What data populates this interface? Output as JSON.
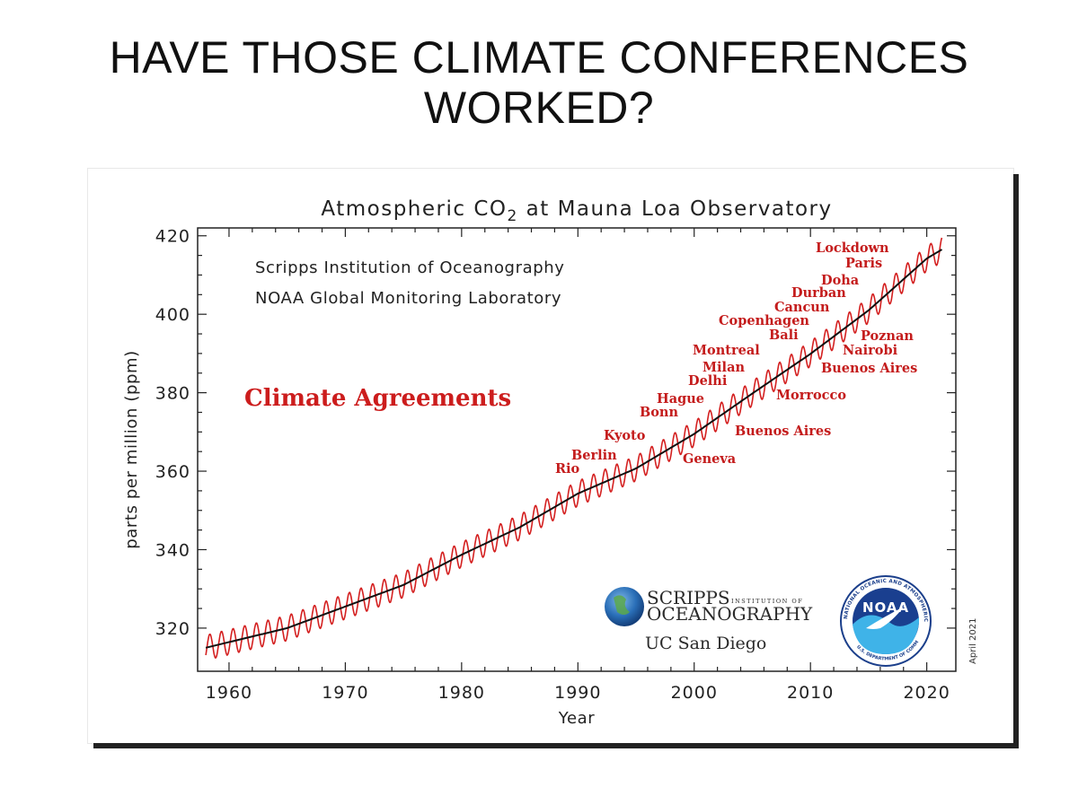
{
  "slide": {
    "title_line1": "HAVE THOSE CLIMATE CONFERENCES",
    "title_line2": "WORKED?"
  },
  "chart_data": {
    "type": "line",
    "title_prefix": "Atmospheric CO",
    "title_subscript": "2",
    "title_suffix": " at Mauna Loa Observatory",
    "institutions": [
      "Scripps Institution of Oceanography",
      "NOAA Global Monitoring Laboratory"
    ],
    "agreements_heading": "Climate Agreements",
    "xlabel": "Year",
    "ylabel": "parts per million (ppm)",
    "xlim": [
      1957.3,
      2022.5
    ],
    "ylim": [
      309,
      422
    ],
    "xticks": [
      1960,
      1970,
      1980,
      1990,
      2000,
      2010,
      2020
    ],
    "yticks": [
      320,
      340,
      360,
      380,
      400,
      420
    ],
    "date_note": "April 2021",
    "colors": {
      "monthly": "#d42020",
      "trend": "#111111",
      "annotation": "#c41c1c"
    },
    "series": [
      {
        "name": "monthly",
        "seasonal_amplitude_ppm": 3.2,
        "x": [
          1958,
          1965,
          1970,
          1975,
          1980,
          1985,
          1990,
          1995,
          2000,
          2005,
          2010,
          2015,
          2020,
          2021.3
        ],
        "y": [
          315.0,
          320.0,
          325.5,
          331.0,
          338.7,
          345.7,
          354.3,
          360.7,
          369.5,
          379.8,
          389.9,
          401.0,
          414.2,
          416.5
        ]
      },
      {
        "name": "trend",
        "x": [
          1958,
          1965,
          1970,
          1975,
          1980,
          1985,
          1990,
          1995,
          2000,
          2005,
          2010,
          2015,
          2020,
          2021.3
        ],
        "y": [
          315.0,
          320.0,
          325.5,
          331.0,
          338.7,
          345.7,
          354.3,
          360.7,
          369.5,
          379.8,
          389.9,
          401.0,
          414.2,
          416.5
        ]
      }
    ],
    "annotations": [
      {
        "text": "Rio",
        "year": 1992
      },
      {
        "text": "Berlin",
        "year": 1995
      },
      {
        "text": "Kyoto",
        "year": 1997
      },
      {
        "text": "Geneva",
        "year": 1996
      },
      {
        "text": "Bonn",
        "year": 1999
      },
      {
        "text": "Hague",
        "year": 2000
      },
      {
        "text": "Buenos Aires",
        "year": 1998
      },
      {
        "text": "Delhi",
        "year": 2002
      },
      {
        "text": "Milan",
        "year": 2003
      },
      {
        "text": "Morrocco",
        "year": 2001
      },
      {
        "text": "Montreal",
        "year": 2005
      },
      {
        "text": "Bali",
        "year": 2007
      },
      {
        "text": "Nairobi",
        "year": 2006
      },
      {
        "text": "Poznan",
        "year": 2008
      },
      {
        "text": "Buenos Aires",
        "year": 2004
      },
      {
        "text": "Copenhagen",
        "year": 2009
      },
      {
        "text": "Cancun",
        "year": 2010
      },
      {
        "text": "Durban",
        "year": 2011
      },
      {
        "text": "Doha",
        "year": 2012
      },
      {
        "text": "Paris",
        "year": 2015
      },
      {
        "text": "Lockdown",
        "year": 2020
      }
    ]
  },
  "logos": {
    "scripps_line1": "SCRIPPS",
    "scripps_small": "INSTITUTION OF",
    "scripps_line2": "OCEANOGRAPHY",
    "ucsd": "UC San Diego",
    "noaa_text": "NOAA",
    "noaa_ring": "NATIONAL OCEANIC AND ATMOSPHERIC ADMINISTRATION",
    "noaa_ring_bottom": "U.S. DEPARTMENT OF COMMERCE"
  }
}
